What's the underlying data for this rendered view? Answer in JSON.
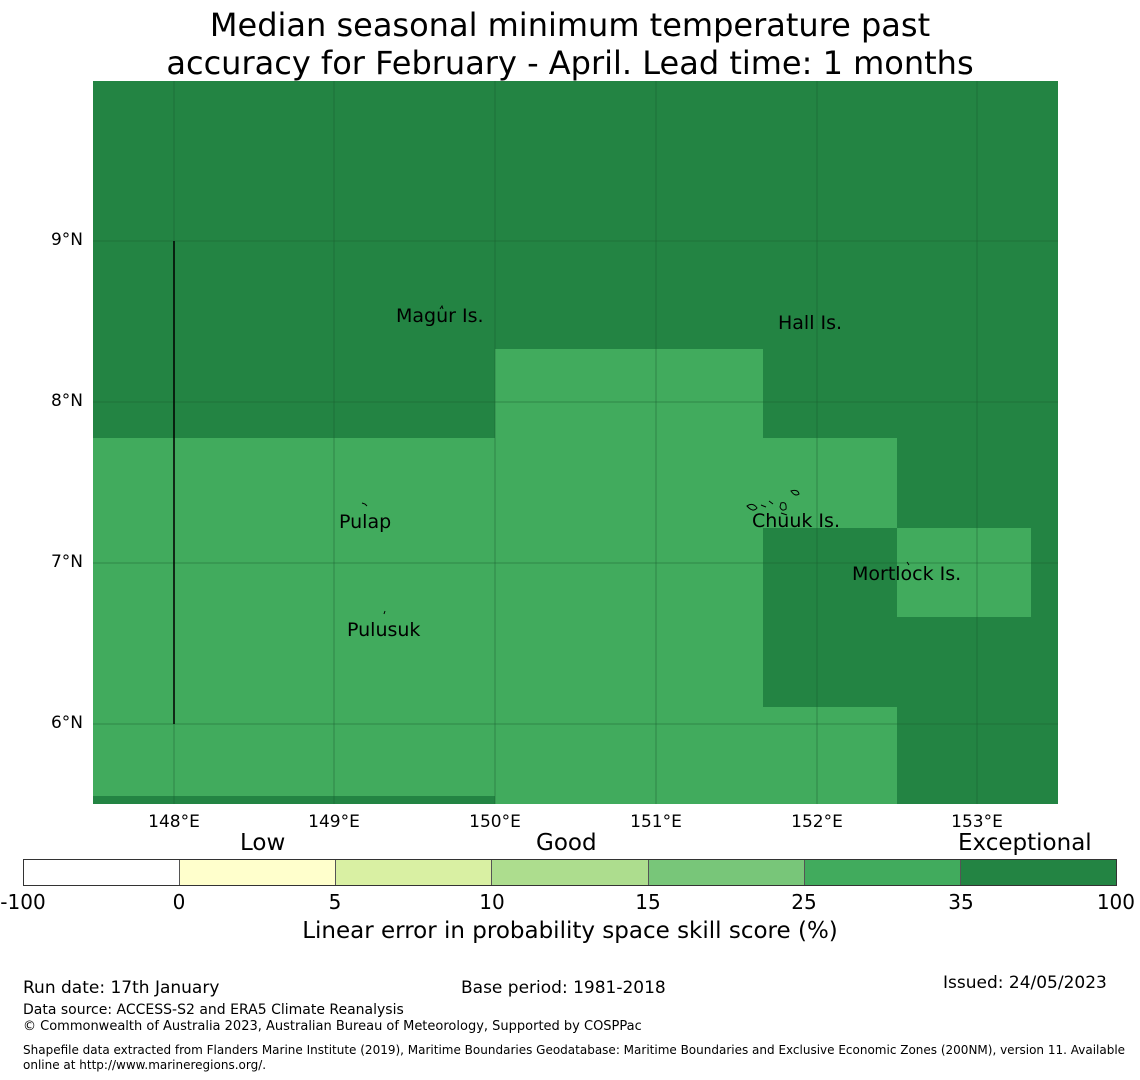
{
  "title": {
    "line1": "Median seasonal minimum temperature past",
    "line2": "accuracy for February - April. Lead time: 1 months"
  },
  "map": {
    "lat_labels": [
      "9°N",
      "8°N",
      "7°N",
      "6°N"
    ],
    "lon_labels": [
      "148°E",
      "149°E",
      "150°E",
      "151°E",
      "152°E",
      "153°E"
    ],
    "places": [
      "Magur Is.",
      "Hall Is.",
      "Pulap",
      "Chuuk Is.",
      "Mortlock Is.",
      "Pulusuk"
    ],
    "colors": {
      "exceptional": "#238443",
      "good_high": "#41ab5d"
    }
  },
  "legend": {
    "category_labels": [
      "Low",
      "Good",
      "Exceptional"
    ],
    "colors": [
      "#ffffff",
      "#ffffcc",
      "#d9f0a3",
      "#addd8e",
      "#78c679",
      "#41ab5d",
      "#238443"
    ],
    "ticks": [
      "-100",
      "0",
      "5",
      "10",
      "15",
      "25",
      "35",
      "100"
    ],
    "label": "Linear error in probability space skill score (%)"
  },
  "footer": {
    "run_date": "Run date: 17th January",
    "base_period": "Base period: 1981-2018",
    "issued": "Issued: 24/05/2023",
    "data_source": "Data source: ACCESS-S2 and ERA5 Climate Reanalysis",
    "copyright": "© Commonwealth of Australia 2023, Australian Bureau of Meteorology, Supported by COSPPac",
    "shapefile_line1": "Shapefile data extracted from Flanders Marine Institute (2019), Maritime Boundaries Geodatabase: Maritime Boundaries and Exclusive Economic Zones (200NM), version 11. Available",
    "shapefile_line2": "online at http://www.marineregions.org/."
  }
}
